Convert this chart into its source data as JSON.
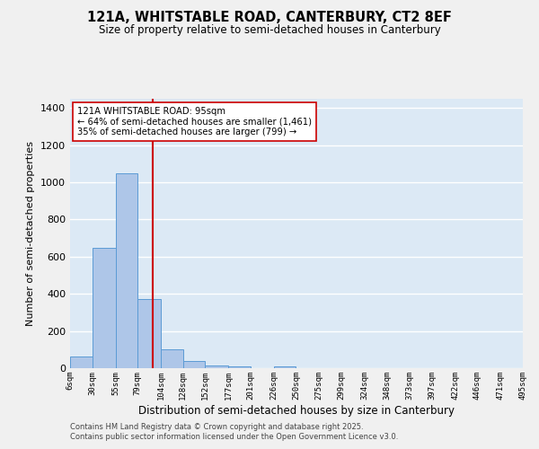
{
  "title": "121A, WHITSTABLE ROAD, CANTERBURY, CT2 8EF",
  "subtitle": "Size of property relative to semi-detached houses in Canterbury",
  "xlabel": "Distribution of semi-detached houses by size in Canterbury",
  "ylabel": "Number of semi-detached properties",
  "footnote1": "Contains HM Land Registry data © Crown copyright and database right 2025.",
  "footnote2": "Contains public sector information licensed under the Open Government Licence v3.0.",
  "annotation_line1": "121A WHITSTABLE ROAD: 95sqm",
  "annotation_line2": "← 64% of semi-detached houses are smaller (1,461)",
  "annotation_line3": "35% of semi-detached houses are larger (799) →",
  "property_size": 95,
  "bar_edges": [
    6,
    30,
    55,
    79,
    104,
    128,
    152,
    177,
    201,
    226,
    250,
    275,
    299,
    324,
    348,
    373,
    397,
    422,
    446,
    471,
    495
  ],
  "bar_heights": [
    65,
    650,
    1050,
    370,
    100,
    40,
    15,
    10,
    0,
    10,
    0,
    0,
    0,
    0,
    0,
    0,
    0,
    0,
    0,
    0
  ],
  "bar_color": "#aec6e8",
  "bar_edge_color": "#5b9bd5",
  "vline_color": "#cc0000",
  "vline_x": 95,
  "ylim": [
    0,
    1450
  ],
  "bg_color": "#dce9f5",
  "grid_color": "#ffffff",
  "annotation_box_color": "#ffffff",
  "annotation_box_edge": "#cc0000",
  "tick_labels": [
    "6sqm",
    "30sqm",
    "55sqm",
    "79sqm",
    "104sqm",
    "128sqm",
    "152sqm",
    "177sqm",
    "201sqm",
    "226sqm",
    "250sqm",
    "275sqm",
    "299sqm",
    "324sqm",
    "348sqm",
    "373sqm",
    "397sqm",
    "422sqm",
    "446sqm",
    "471sqm",
    "495sqm"
  ],
  "fig_bg": "#f0f0f0"
}
